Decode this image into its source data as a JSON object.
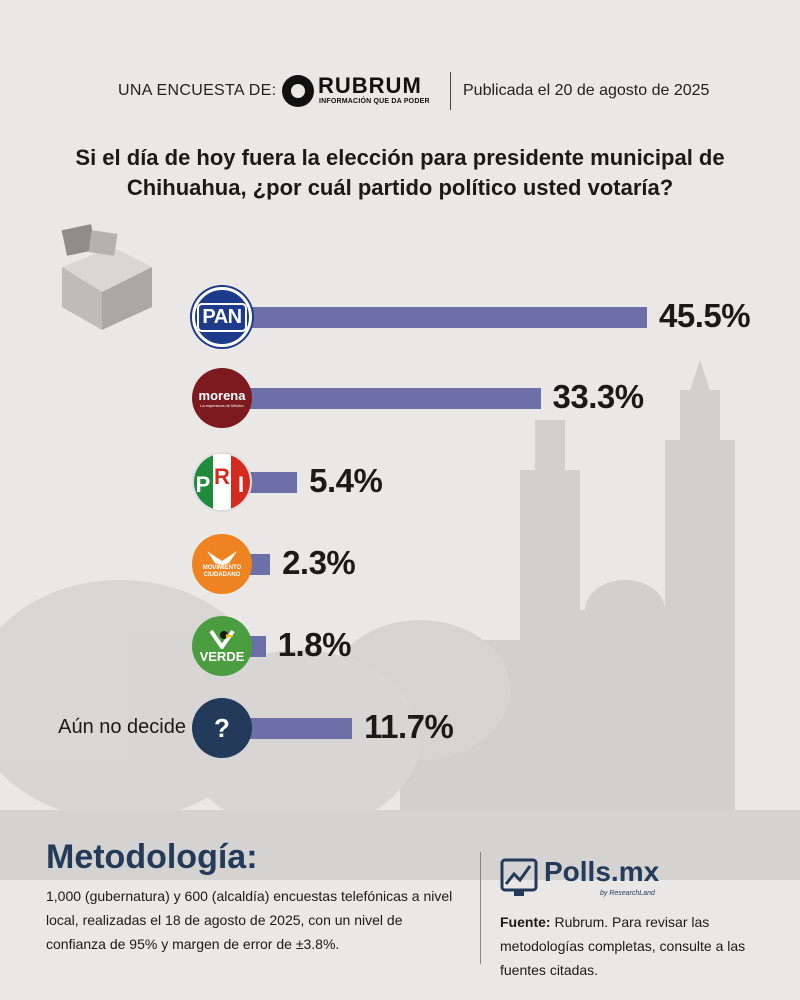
{
  "header": {
    "label": "UNA ENCUESTA DE:",
    "brand": "RUBRUM",
    "brand_tagline": "INFORMACIÓN QUE DA PODER",
    "published": "Publicada el 20 de agosto de 2025"
  },
  "question": "Si el día de hoy fuera la elección para presidente municipal de Chihuahua, ¿por cuál partido político usted votaría?",
  "colors": {
    "bar": "#6d6fa8",
    "accent": "#233a5b",
    "background": "#e9e8e6"
  },
  "chart_data": {
    "type": "bar",
    "orientation": "horizontal",
    "categories": [
      "PAN",
      "morena",
      "PRI",
      "MOVIMIENTO CIUDADANO",
      "VERDE",
      "Aún no decide"
    ],
    "values": [
      45.5,
      33.3,
      5.4,
      2.3,
      1.8,
      11.7
    ],
    "value_labels": [
      "45.5%",
      "33.3%",
      "5.4%",
      "2.3%",
      "1.8%",
      "11.7%"
    ],
    "logos": {
      "pan": "PAN",
      "morena": "morena",
      "morena_tagline": "La esperanza de México",
      "pri_letters": [
        "P",
        "R",
        "I"
      ],
      "mc": "MOVIMIENTO CIUDADANO",
      "verde": "VERDE",
      "undecided_symbol": "?"
    },
    "undecided_label": "Aún no decide",
    "grid": false
  },
  "methodology": {
    "title": "Metodología:",
    "text": "1,000 (gubernatura) y 600 (alcaldía) encuestas telefónicas a nivel local, realizadas el 18 de agosto de 2025, con un nivel de confianza de 95% y margen de error de ±3.8%."
  },
  "footer": {
    "brand": "Polls.mx",
    "brand_by": "by ResearchLand",
    "source_label": "Fuente:",
    "source_text": " Rubrum. Para revisar las metodologías completas, consulte a las fuentes citadas."
  }
}
